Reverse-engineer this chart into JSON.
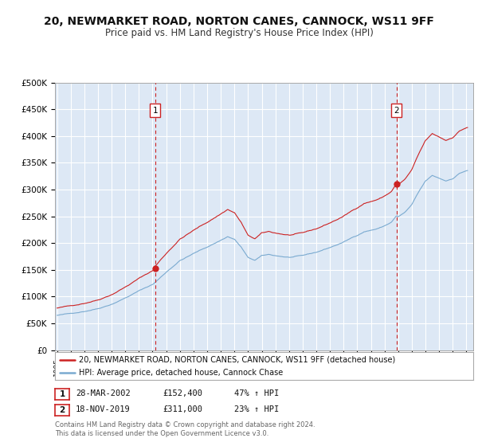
{
  "title": "20, NEWMARKET ROAD, NORTON CANES, CANNOCK, WS11 9FF",
  "subtitle": "Price paid vs. HM Land Registry's House Price Index (HPI)",
  "title_fontsize": 10,
  "subtitle_fontsize": 8.5,
  "background_color": "#ffffff",
  "plot_bg_color": "#dde8f5",
  "grid_color": "#ffffff",
  "ylim": [
    0,
    500000
  ],
  "yticks": [
    0,
    50000,
    100000,
    150000,
    200000,
    250000,
    300000,
    350000,
    400000,
    450000,
    500000
  ],
  "ytick_labels": [
    "£0",
    "£50K",
    "£100K",
    "£150K",
    "£200K",
    "£250K",
    "£300K",
    "£350K",
    "£400K",
    "£450K",
    "£500K"
  ],
  "xmin_year": 1995,
  "xmax_year": 2025.5,
  "xtick_years": [
    1995,
    1996,
    1997,
    1998,
    1999,
    2000,
    2001,
    2002,
    2003,
    2004,
    2005,
    2006,
    2007,
    2008,
    2009,
    2010,
    2011,
    2012,
    2013,
    2014,
    2015,
    2016,
    2017,
    2018,
    2019,
    2020,
    2021,
    2022,
    2023,
    2024,
    2025
  ],
  "red_line_color": "#cc2222",
  "blue_line_color": "#7aaad0",
  "dashed_line_color": "#cc2222",
  "marker_color": "#cc2222",
  "marker_size": 6,
  "sale1_year": 2002.2,
  "sale1_price": 152400,
  "sale2_year": 2019.88,
  "sale2_price": 311000,
  "legend_line1": "20, NEWMARKET ROAD, NORTON CANES, CANNOCK, WS11 9FF (detached house)",
  "legend_line2": "HPI: Average price, detached house, Cannock Chase",
  "table_row1": [
    "1",
    "28-MAR-2002",
    "£152,400",
    "47% ↑ HPI"
  ],
  "table_row2": [
    "2",
    "18-NOV-2019",
    "£311,000",
    "23% ↑ HPI"
  ],
  "footer_text": "Contains HM Land Registry data © Crown copyright and database right 2024.\nThis data is licensed under the Open Government Licence v3.0."
}
